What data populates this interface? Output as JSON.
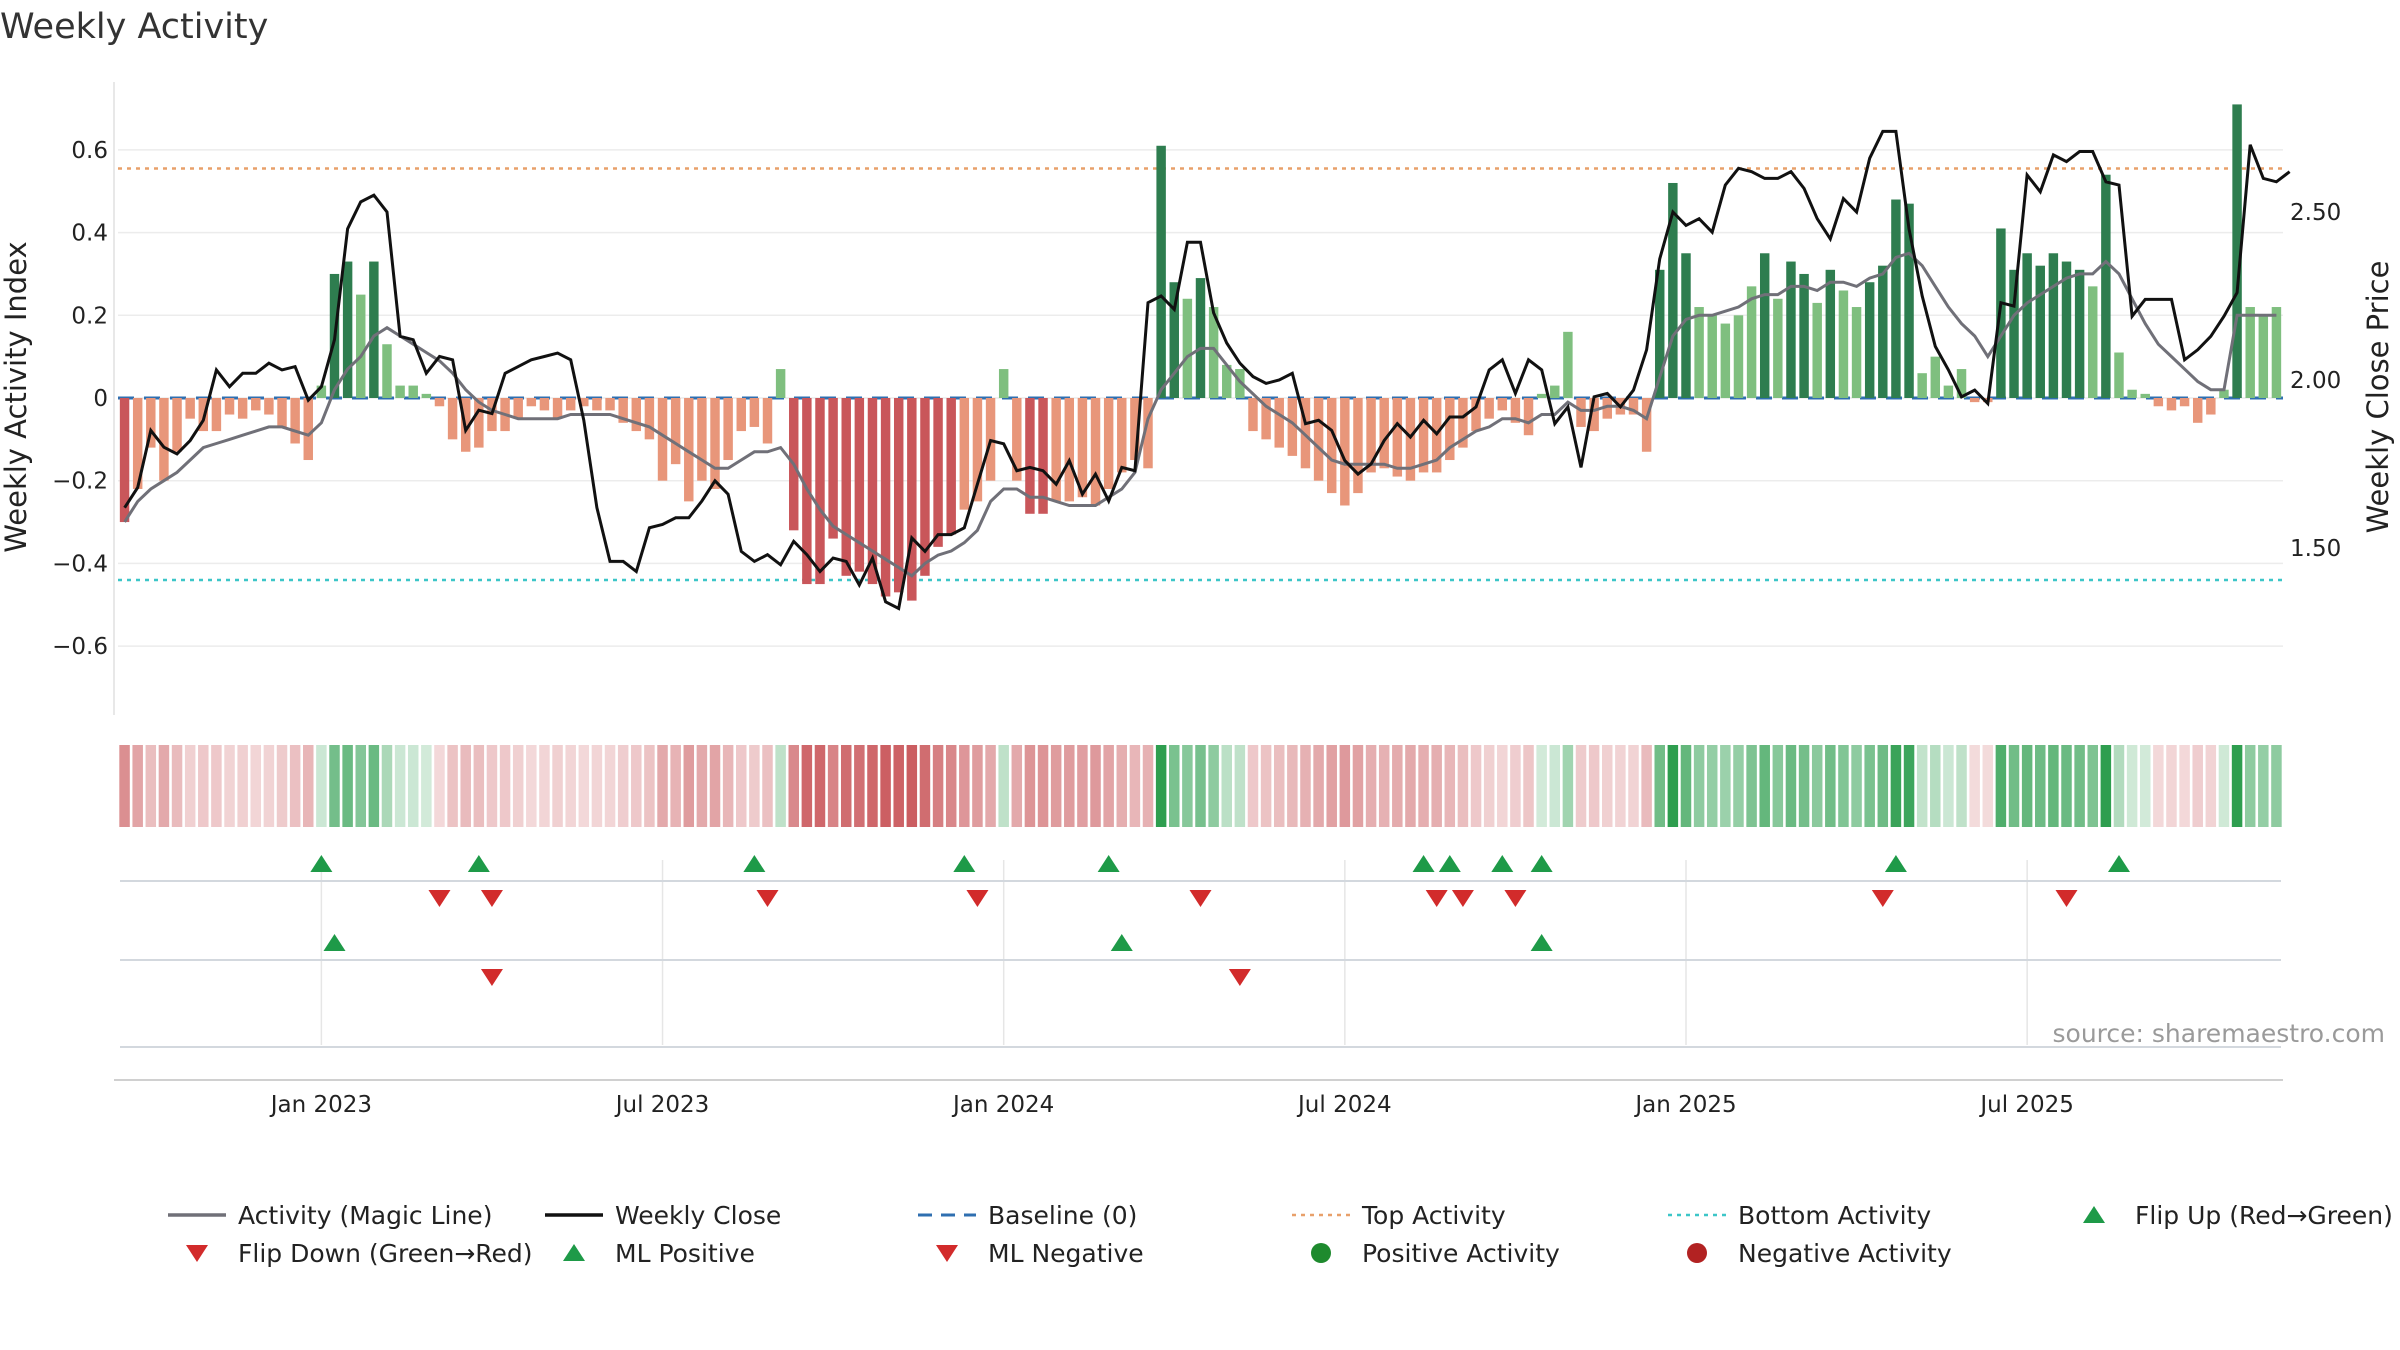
{
  "title": "Weekly Activity",
  "source": "source: sharemaestro.com",
  "colors": {
    "pos_strong": "#2e7d4f",
    "pos_light": "#7fbf7f",
    "neg_strong": "#c9565a",
    "neg_light": "#e8967a",
    "close": "#111111",
    "magic": "#707078",
    "baseline": "#2f6fb0",
    "top": "#e8a06a",
    "bottom": "#3cc6c8",
    "up": "#1e9a48",
    "down": "#d22b2b"
  },
  "chart_data": {
    "type": "bar",
    "title": "Weekly Activity",
    "ylabel": "Weekly Activity Index",
    "ylabel_right": "Weekly Close Price",
    "ylim": [
      -0.77,
      0.77
    ],
    "y2lim": [
      1.0,
      2.88
    ],
    "yticks": [
      0.6,
      0.4,
      0.2,
      0,
      -0.2,
      -0.4,
      -0.6
    ],
    "yticks_labels": [
      "0.6",
      "0.4",
      "0.2",
      "0",
      "−0.2",
      "−0.4",
      "−0.6"
    ],
    "y2ticks": [
      2.5,
      2.0,
      1.5
    ],
    "y2ticks_labels": [
      "2.50",
      "2.00",
      "1.50"
    ],
    "x_labels": [
      "Jan 2023",
      "Jul 2023",
      "Jan 2024",
      "Jul 2024",
      "Jan 2025",
      "Jul 2025"
    ],
    "x_label_weeks": [
      15,
      41,
      67,
      93,
      119,
      145
    ],
    "top_activity": 0.555,
    "bottom_activity": -0.44,
    "activity": [
      -0.3,
      -0.22,
      -0.12,
      -0.2,
      -0.13,
      -0.05,
      -0.08,
      -0.08,
      -0.04,
      -0.05,
      -0.03,
      -0.04,
      -0.07,
      -0.11,
      -0.15,
      0.03,
      0.3,
      0.33,
      0.25,
      0.33,
      0.13,
      0.03,
      0.03,
      0.01,
      -0.02,
      -0.1,
      -0.13,
      -0.12,
      -0.08,
      -0.08,
      -0.05,
      -0.02,
      -0.03,
      -0.05,
      -0.03,
      -0.02,
      -0.03,
      -0.03,
      -0.06,
      -0.08,
      -0.1,
      -0.2,
      -0.16,
      -0.25,
      -0.2,
      -0.22,
      -0.15,
      -0.08,
      -0.07,
      -0.11,
      0.07,
      -0.32,
      -0.45,
      -0.45,
      -0.34,
      -0.43,
      -0.42,
      -0.45,
      -0.48,
      -0.47,
      -0.49,
      -0.43,
      -0.36,
      -0.33,
      -0.27,
      -0.25,
      -0.2,
      0.07,
      -0.2,
      -0.28,
      -0.28,
      -0.25,
      -0.25,
      -0.24,
      -0.26,
      -0.22,
      -0.18,
      -0.15,
      -0.17,
      0.61,
      0.28,
      0.24,
      0.29,
      0.22,
      0.08,
      0.07,
      -0.08,
      -0.1,
      -0.12,
      -0.14,
      -0.17,
      -0.2,
      -0.23,
      -0.26,
      -0.23,
      -0.18,
      -0.17,
      -0.19,
      -0.2,
      -0.18,
      -0.18,
      -0.15,
      -0.12,
      -0.08,
      -0.05,
      -0.03,
      -0.06,
      -0.09,
      0.01,
      0.03,
      0.16,
      -0.07,
      -0.08,
      -0.05,
      -0.04,
      -0.04,
      -0.13,
      0.31,
      0.52,
      0.35,
      0.22,
      0.2,
      0.18,
      0.2,
      0.27,
      0.35,
      0.24,
      0.33,
      0.3,
      0.23,
      0.31,
      0.26,
      0.22,
      0.28,
      0.32,
      0.48,
      0.47,
      0.06,
      0.1,
      0.03,
      0.07,
      -0.01,
      -0.01,
      0.41,
      0.31,
      0.35,
      0.32,
      0.35,
      0.33,
      0.31,
      0.27,
      0.54,
      0.11,
      0.02,
      0.01,
      -0.02,
      -0.03,
      -0.02,
      -0.06,
      -0.04,
      0.02,
      0.71,
      0.22,
      0.2,
      0.22
    ],
    "magic_line": [
      -0.3,
      -0.25,
      -0.22,
      -0.2,
      -0.18,
      -0.15,
      -0.12,
      -0.11,
      -0.1,
      -0.09,
      -0.08,
      -0.07,
      -0.07,
      -0.08,
      -0.09,
      -0.06,
      0.02,
      0.07,
      0.1,
      0.15,
      0.17,
      0.15,
      0.13,
      0.11,
      0.09,
      0.06,
      0.02,
      -0.01,
      -0.03,
      -0.04,
      -0.05,
      -0.05,
      -0.05,
      -0.05,
      -0.04,
      -0.04,
      -0.04,
      -0.04,
      -0.05,
      -0.06,
      -0.07,
      -0.09,
      -0.11,
      -0.13,
      -0.15,
      -0.17,
      -0.17,
      -0.15,
      -0.13,
      -0.13,
      -0.12,
      -0.16,
      -0.22,
      -0.27,
      -0.31,
      -0.33,
      -0.35,
      -0.37,
      -0.39,
      -0.41,
      -0.43,
      -0.4,
      -0.38,
      -0.37,
      -0.35,
      -0.32,
      -0.25,
      -0.22,
      -0.22,
      -0.24,
      -0.24,
      -0.25,
      -0.26,
      -0.26,
      -0.26,
      -0.24,
      -0.22,
      -0.18,
      -0.05,
      0.02,
      0.06,
      0.1,
      0.12,
      0.12,
      0.08,
      0.04,
      0.01,
      -0.02,
      -0.04,
      -0.06,
      -0.09,
      -0.12,
      -0.15,
      -0.16,
      -0.16,
      -0.16,
      -0.16,
      -0.17,
      -0.17,
      -0.16,
      -0.15,
      -0.12,
      -0.1,
      -0.08,
      -0.07,
      -0.05,
      -0.05,
      -0.06,
      -0.04,
      -0.04,
      -0.01,
      -0.03,
      -0.03,
      -0.02,
      -0.02,
      -0.03,
      -0.05,
      0.05,
      0.15,
      0.19,
      0.2,
      0.2,
      0.21,
      0.22,
      0.24,
      0.25,
      0.25,
      0.27,
      0.27,
      0.26,
      0.28,
      0.28,
      0.27,
      0.29,
      0.3,
      0.34,
      0.35,
      0.32,
      0.27,
      0.22,
      0.18,
      0.15,
      0.1,
      0.15,
      0.2,
      0.23,
      0.25,
      0.27,
      0.29,
      0.3,
      0.3,
      0.33,
      0.3,
      0.24,
      0.18,
      0.13,
      0.1,
      0.07,
      0.04,
      0.02,
      0.02,
      0.2,
      0.2,
      0.2,
      0.2
    ],
    "weekly_close": [
      1.62,
      1.68,
      1.85,
      1.8,
      1.78,
      1.82,
      1.88,
      2.03,
      1.98,
      2.02,
      2.02,
      2.05,
      2.03,
      2.04,
      1.94,
      1.98,
      2.12,
      2.45,
      2.53,
      2.55,
      2.5,
      2.13,
      2.12,
      2.02,
      2.07,
      2.06,
      1.85,
      1.91,
      1.9,
      2.02,
      2.04,
      2.06,
      2.07,
      2.08,
      2.06,
      1.88,
      1.62,
      1.46,
      1.46,
      1.43,
      1.56,
      1.57,
      1.59,
      1.59,
      1.64,
      1.7,
      1.66,
      1.49,
      1.46,
      1.48,
      1.45,
      1.52,
      1.48,
      1.43,
      1.47,
      1.46,
      1.39,
      1.47,
      1.34,
      1.32,
      1.53,
      1.49,
      1.54,
      1.54,
      1.56,
      1.69,
      1.82,
      1.81,
      1.73,
      1.74,
      1.73,
      1.69,
      1.76,
      1.66,
      1.72,
      1.64,
      1.74,
      1.73,
      2.23,
      2.25,
      2.21,
      2.41,
      2.41,
      2.2,
      2.11,
      2.05,
      2.01,
      1.99,
      2.0,
      2.02,
      1.87,
      1.88,
      1.85,
      1.76,
      1.72,
      1.75,
      1.82,
      1.87,
      1.83,
      1.88,
      1.84,
      1.89,
      1.89,
      1.92,
      2.03,
      2.06,
      1.96,
      2.06,
      2.03,
      1.87,
      1.92,
      1.74,
      1.95,
      1.96,
      1.92,
      1.97,
      2.09,
      2.36,
      2.5,
      2.46,
      2.48,
      2.44,
      2.58,
      2.63,
      2.62,
      2.6,
      2.6,
      2.62,
      2.57,
      2.48,
      2.42,
      2.54,
      2.5,
      2.66,
      2.74,
      2.74,
      2.45,
      2.25,
      2.1,
      2.03,
      1.95,
      1.97,
      1.93,
      2.23,
      2.22,
      2.61,
      2.56,
      2.67,
      2.65,
      2.68,
      2.68,
      2.59,
      2.58,
      2.19,
      2.24,
      2.24,
      2.24,
      2.06,
      2.09,
      2.13,
      2.19,
      2.26,
      2.7,
      2.6,
      2.59,
      2.62
    ],
    "flip_up": [
      15,
      27,
      48,
      64,
      75,
      99,
      101,
      105,
      108,
      135,
      152
    ],
    "flip_down": [
      24,
      28,
      49,
      65,
      82,
      100,
      102,
      106,
      134,
      148
    ],
    "ml_positive": [
      16,
      76,
      108
    ],
    "ml_negative": [
      28,
      85
    ]
  },
  "legend": [
    {
      "label": "Activity (Magic Line)",
      "symbol": "solid-line",
      "color": "#707078"
    },
    {
      "label": "Weekly Close",
      "symbol": "solid-line",
      "color": "#111111"
    },
    {
      "label": "Baseline (0)",
      "symbol": "dash-line",
      "color": "#2f6fb0"
    },
    {
      "label": "Top Activity",
      "symbol": "dot-line",
      "color": "#e8a06a"
    },
    {
      "label": "Bottom Activity",
      "symbol": "dot-line",
      "color": "#3cc6c8"
    },
    {
      "label": "Flip Up (Red→Green)",
      "symbol": "triangle-up",
      "color": "#1e9a48"
    },
    {
      "label": "Flip Down (Green→Red)",
      "symbol": "triangle-down",
      "color": "#d22b2b"
    },
    {
      "label": "ML Positive",
      "symbol": "triangle-up",
      "color": "#1e9a48"
    },
    {
      "label": "ML Negative",
      "symbol": "triangle-down",
      "color": "#d22b2b"
    },
    {
      "label": "Positive Activity",
      "symbol": "circle",
      "color": "#1e8a2e"
    },
    {
      "label": "Negative Activity",
      "symbol": "circle",
      "color": "#b22222"
    }
  ]
}
